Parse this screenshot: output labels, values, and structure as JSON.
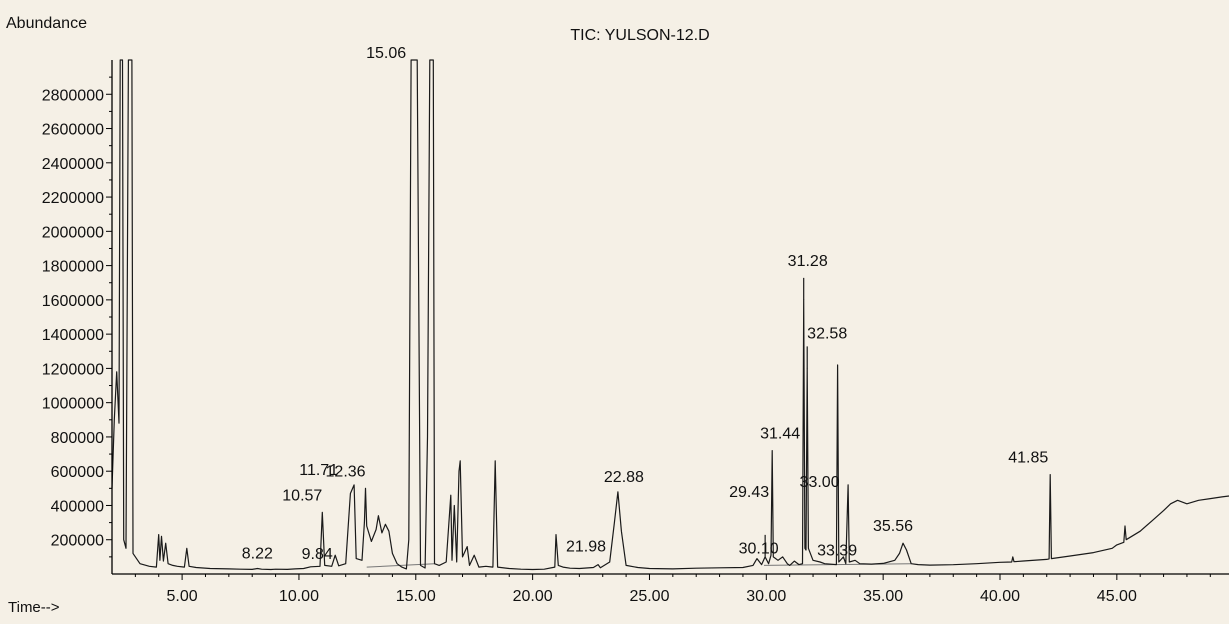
{
  "chart_data": {
    "type": "line",
    "title": "TIC: YULSON-12.D",
    "ylabel": "Abundance",
    "xlabel": "Time-->",
    "xlim": [
      2.0,
      49.8
    ],
    "ylim": [
      0,
      3000000
    ],
    "x_ticks": [
      5,
      10,
      15,
      20,
      25,
      30,
      35,
      40,
      45
    ],
    "x_tick_labels": [
      "5.00",
      "10.00",
      "15.00",
      "20.00",
      "25.00",
      "30.00",
      "35.00",
      "40.00",
      "45.00"
    ],
    "y_ticks": [
      200000,
      400000,
      600000,
      800000,
      1000000,
      1200000,
      1400000,
      1600000,
      1800000,
      2000000,
      2200000,
      2400000,
      2600000,
      2800000
    ],
    "y_tick_labels": [
      "200000",
      "400000",
      "600000",
      "800000",
      "1000000",
      "1200000",
      "1400000",
      "1600000",
      "1800000",
      "2000000",
      "2200000",
      "2400000",
      "2600000",
      "2800000"
    ],
    "grid": false,
    "colors": {
      "trace": "#1a1a1a",
      "axis": "#000000",
      "baseline": "#777777",
      "background": "#f5f0e6"
    },
    "series": [
      {
        "points": [
          [
            2.0,
            500000
          ],
          [
            2.1,
            900000
          ],
          [
            2.2,
            1180000
          ],
          [
            2.3,
            880000
          ],
          [
            2.35,
            3000000
          ],
          [
            2.45,
            3000000
          ],
          [
            2.5,
            200000
          ],
          [
            2.6,
            150000
          ],
          [
            2.7,
            3000000
          ],
          [
            2.85,
            3000000
          ],
          [
            2.9,
            120000
          ],
          [
            3.2,
            60000
          ],
          [
            3.6,
            45000
          ],
          [
            3.9,
            40000
          ],
          [
            4.0,
            230000
          ],
          [
            4.05,
            80000
          ],
          [
            4.12,
            220000
          ],
          [
            4.2,
            75000
          ],
          [
            4.3,
            180000
          ],
          [
            4.4,
            60000
          ],
          [
            4.6,
            50000
          ],
          [
            4.8,
            45000
          ],
          [
            5.1,
            40000
          ],
          [
            5.2,
            150000
          ],
          [
            5.3,
            45000
          ],
          [
            5.6,
            38000
          ],
          [
            6.2,
            32000
          ],
          [
            7.0,
            30000
          ],
          [
            7.5,
            28000
          ],
          [
            8.0,
            27000
          ],
          [
            8.22,
            32000
          ],
          [
            8.4,
            28000
          ],
          [
            8.8,
            26000
          ],
          [
            9.0,
            28000
          ],
          [
            9.5,
            27000
          ],
          [
            9.84,
            30000
          ],
          [
            10.2,
            32000
          ],
          [
            10.5,
            42000
          ],
          [
            10.9,
            45000
          ],
          [
            11.0,
            360000
          ],
          [
            11.1,
            50000
          ],
          [
            11.4,
            45000
          ],
          [
            11.55,
            110000
          ],
          [
            11.7,
            48000
          ],
          [
            12.0,
            60000
          ],
          [
            12.2,
            470000
          ],
          [
            12.36,
            520000
          ],
          [
            12.45,
            90000
          ],
          [
            12.7,
            80000
          ],
          [
            12.8,
            300000
          ],
          [
            12.85,
            500000
          ],
          [
            12.9,
            280000
          ],
          [
            13.1,
            190000
          ],
          [
            13.3,
            260000
          ],
          [
            13.4,
            340000
          ],
          [
            13.55,
            240000
          ],
          [
            13.7,
            290000
          ],
          [
            13.85,
            250000
          ],
          [
            14.0,
            120000
          ],
          [
            14.2,
            60000
          ],
          [
            14.4,
            40000
          ],
          [
            14.6,
            30000
          ],
          [
            14.7,
            200000
          ],
          [
            14.8,
            3000000
          ],
          [
            15.06,
            3000000
          ],
          [
            15.2,
            50000
          ],
          [
            15.4,
            35000
          ],
          [
            15.5,
            800000
          ],
          [
            15.6,
            3000000
          ],
          [
            15.75,
            3000000
          ],
          [
            15.8,
            60000
          ],
          [
            16.0,
            50000
          ],
          [
            16.3,
            70000
          ],
          [
            16.5,
            460000
          ],
          [
            16.55,
            80000
          ],
          [
            16.65,
            400000
          ],
          [
            16.75,
            70000
          ],
          [
            16.85,
            600000
          ],
          [
            16.9,
            660000
          ],
          [
            17.0,
            100000
          ],
          [
            17.2,
            160000
          ],
          [
            17.3,
            50000
          ],
          [
            17.5,
            110000
          ],
          [
            17.7,
            40000
          ],
          [
            18.0,
            45000
          ],
          [
            18.3,
            40000
          ],
          [
            18.4,
            660000
          ],
          [
            18.5,
            40000
          ],
          [
            19.0,
            32000
          ],
          [
            19.5,
            28000
          ],
          [
            20.0,
            26000
          ],
          [
            20.5,
            28000
          ],
          [
            20.95,
            40000
          ],
          [
            21.0,
            230000
          ],
          [
            21.1,
            50000
          ],
          [
            21.3,
            40000
          ],
          [
            21.6,
            34000
          ],
          [
            22.0,
            32000
          ],
          [
            22.6,
            38000
          ],
          [
            22.8,
            55000
          ],
          [
            22.9,
            36000
          ],
          [
            23.3,
            70000
          ],
          [
            23.5,
            300000
          ],
          [
            23.65,
            480000
          ],
          [
            23.8,
            250000
          ],
          [
            24.0,
            50000
          ],
          [
            24.5,
            38000
          ],
          [
            25.0,
            32000
          ],
          [
            26.0,
            30000
          ],
          [
            27.0,
            34000
          ],
          [
            28.0,
            36000
          ],
          [
            29.0,
            38000
          ],
          [
            29.43,
            50000
          ],
          [
            29.6,
            90000
          ],
          [
            29.8,
            55000
          ],
          [
            29.95,
            100000
          ],
          [
            30.1,
            60000
          ],
          [
            30.2,
            110000
          ],
          [
            30.25,
            720000
          ],
          [
            30.3,
            100000
          ],
          [
            30.5,
            80000
          ],
          [
            30.7,
            100000
          ],
          [
            30.9,
            60000
          ],
          [
            31.0,
            50000
          ],
          [
            31.2,
            75000
          ],
          [
            31.4,
            55000
          ],
          [
            31.55,
            60000
          ],
          [
            31.6,
            1600000
          ],
          [
            31.65,
            150000
          ],
          [
            31.7,
            140000
          ],
          [
            31.75,
            1200000
          ],
          [
            31.8,
            150000
          ],
          [
            32.0,
            80000
          ],
          [
            32.3,
            70000
          ],
          [
            32.5,
            60000
          ],
          [
            33.0,
            55000
          ],
          [
            33.05,
            1220000
          ],
          [
            33.1,
            70000
          ],
          [
            33.3,
            100000
          ],
          [
            33.4,
            60000
          ],
          [
            33.5,
            520000
          ],
          [
            33.55,
            70000
          ],
          [
            33.8,
            80000
          ],
          [
            34.0,
            60000
          ],
          [
            34.5,
            58000
          ],
          [
            35.0,
            62000
          ],
          [
            35.5,
            80000
          ],
          [
            35.7,
            120000
          ],
          [
            35.85,
            180000
          ],
          [
            36.0,
            140000
          ],
          [
            36.2,
            60000
          ],
          [
            36.5,
            55000
          ],
          [
            37.0,
            52000
          ],
          [
            38.0,
            54000
          ],
          [
            39.0,
            60000
          ],
          [
            40.0,
            68000
          ],
          [
            40.5,
            70000
          ],
          [
            40.55,
            100000
          ],
          [
            40.6,
            72000
          ],
          [
            41.0,
            76000
          ],
          [
            42.0,
            85000
          ],
          [
            42.1,
            88000
          ],
          [
            42.15,
            580000
          ],
          [
            42.2,
            90000
          ],
          [
            43.0,
            105000
          ],
          [
            44.0,
            125000
          ],
          [
            44.8,
            150000
          ],
          [
            45.0,
            170000
          ],
          [
            45.3,
            185000
          ],
          [
            45.35,
            280000
          ],
          [
            45.4,
            200000
          ],
          [
            46.0,
            250000
          ],
          [
            46.5,
            310000
          ],
          [
            47.0,
            370000
          ],
          [
            47.3,
            410000
          ],
          [
            47.6,
            430000
          ],
          [
            48.0,
            410000
          ],
          [
            48.5,
            430000
          ],
          [
            49.0,
            440000
          ],
          [
            49.5,
            450000
          ],
          [
            49.8,
            455000
          ]
        ]
      }
    ],
    "peak_labels": [
      {
        "label": "8.22",
        "x": 8.22,
        "y": 32000,
        "marker": false
      },
      {
        "label": "9.84",
        "x": 9.84,
        "y": 30000,
        "marker": false
      },
      {
        "label": "10.57",
        "x": 11.0,
        "y": 360000,
        "marker": false
      },
      {
        "label": "11.71",
        "x": 12.3,
        "y": 520000,
        "marker": false
      },
      {
        "label": "12.36",
        "x": 12.85,
        "y": 500000,
        "marker": false
      },
      {
        "label": "15.06",
        "x": 15.1,
        "y": 3000000,
        "marker": false
      },
      {
        "label": "21.98",
        "x": 21.0,
        "y": 50000,
        "marker": false
      },
      {
        "label": "22.88",
        "x": 23.65,
        "y": 480000,
        "marker": false
      },
      {
        "label": "29.43",
        "x": 29.95,
        "y": 100000,
        "marker": true
      },
      {
        "label": "30.10",
        "x": 30.1,
        "y": 60000,
        "marker": false
      },
      {
        "label": "31.28",
        "x": 31.6,
        "y": 1600000,
        "marker": true
      },
      {
        "label": "31.44",
        "x": 30.25,
        "y": 720000,
        "marker": false
      },
      {
        "label": "32.58",
        "x": 31.75,
        "y": 1200000,
        "marker": true
      },
      {
        "label": "33.00",
        "x": 33.05,
        "y": 450000,
        "marker": false
      },
      {
        "label": "33.39",
        "x": 33.2,
        "y": 60000,
        "marker": false
      },
      {
        "label": "35.56",
        "x": 35.85,
        "y": 180000,
        "marker": false
      },
      {
        "label": "41.85",
        "x": 42.15,
        "y": 580000,
        "marker": false
      }
    ]
  }
}
